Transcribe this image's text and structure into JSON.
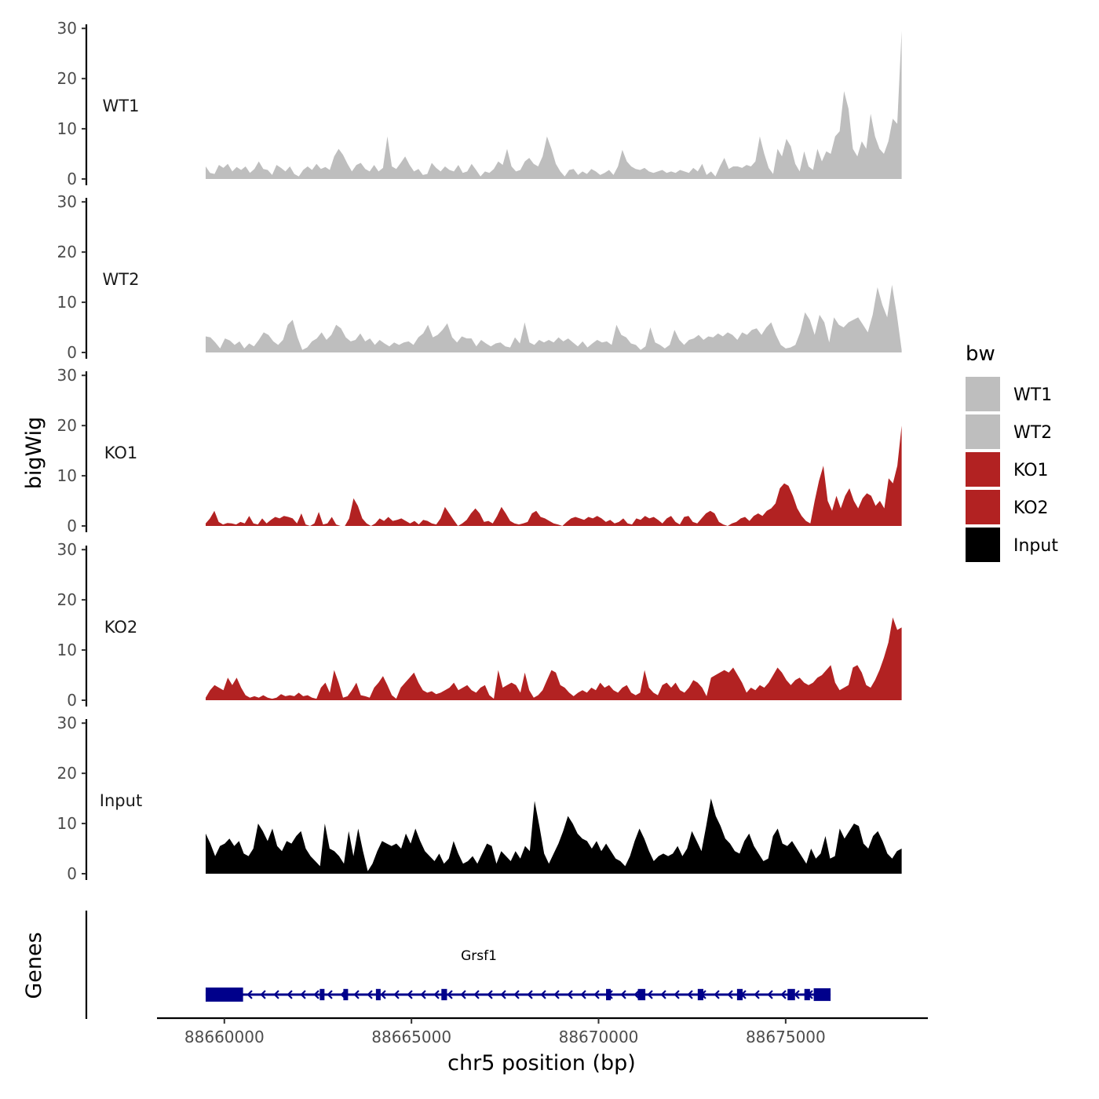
{
  "chart_data": {
    "type": "area",
    "y_axis_title": "bigWig",
    "x_axis_title": "chr5 position (bp)",
    "genes_axis_title": "Genes",
    "x_ticks": [
      88660000,
      88665000,
      88670000,
      88675000
    ],
    "x_tick_labels": [
      "88660000",
      "88665000",
      "88670000",
      "88675000"
    ],
    "xlim": [
      88658200,
      88678800
    ],
    "y_ticks": [
      0,
      10,
      20,
      30
    ],
    "y_tick_labels": [
      "0",
      "10",
      "20",
      "30"
    ],
    "ylim": [
      0,
      30.5
    ],
    "data_range": [
      88659500,
      88678100
    ],
    "legend": {
      "title": "bw",
      "entries": [
        {
          "label": "WT1",
          "color": "#BEBEBE"
        },
        {
          "label": "WT2",
          "color": "#BEBEBE"
        },
        {
          "label": "KO1",
          "color": "#B22222"
        },
        {
          "label": "KO2",
          "color": "#B22222"
        },
        {
          "label": "Input",
          "color": "#000000"
        }
      ]
    },
    "series": [
      {
        "name": "WT1",
        "color": "#BEBEBE",
        "values": [
          2.5,
          1.2,
          1.0,
          2.8,
          2.2,
          3.0,
          1.5,
          2.4,
          1.8,
          2.5,
          1.2,
          2.0,
          3.5,
          2.0,
          1.8,
          0.8,
          2.8,
          2.2,
          1.5,
          2.5,
          1.0,
          0.5,
          1.8,
          2.5,
          1.8,
          3.0,
          2.0,
          2.4,
          1.8,
          4.5,
          6.0,
          4.8,
          3.0,
          1.5,
          2.8,
          3.2,
          2.0,
          1.5,
          2.8,
          1.5,
          2.2,
          8.5,
          2.5,
          2.0,
          3.2,
          4.5,
          2.8,
          1.5,
          2.0,
          0.8,
          1.0,
          3.2,
          2.2,
          1.5,
          2.5,
          1.8,
          1.5,
          2.8,
          1.2,
          1.5,
          3.0,
          1.8,
          0.5,
          1.5,
          1.2,
          2.0,
          3.5,
          2.8,
          6.0,
          2.5,
          1.5,
          1.8,
          3.5,
          4.2,
          3.0,
          2.5,
          4.5,
          8.5,
          6.0,
          3.0,
          1.5,
          0.5,
          1.8,
          2.0,
          0.8,
          1.5,
          1.0,
          2.0,
          1.5,
          0.8,
          1.2,
          1.8,
          0.8,
          2.5,
          5.8,
          3.5,
          2.5,
          2.0,
          1.8,
          2.2,
          1.5,
          1.2,
          1.5,
          1.8,
          1.2,
          1.5,
          1.2,
          1.8,
          1.5,
          1.2,
          2.2,
          1.5,
          3.0,
          0.8,
          1.5,
          0.5,
          2.5,
          4.2,
          2.0,
          2.5,
          2.5,
          2.2,
          2.8,
          2.5,
          3.5,
          8.5,
          5.0,
          2.2,
          1.0,
          6.0,
          4.5,
          8.0,
          6.5,
          3.0,
          1.5,
          5.5,
          2.5,
          1.8,
          6.0,
          3.5,
          5.5,
          5.0,
          8.5,
          9.5,
          17.5,
          14.0,
          6.0,
          4.5,
          7.5,
          6.0,
          13.0,
          8.5,
          6.0,
          5.0,
          7.5,
          12.0,
          11.0,
          29.5
        ]
      },
      {
        "name": "WT2",
        "color": "#BEBEBE",
        "values": [
          3.2,
          3.0,
          2.0,
          0.8,
          2.8,
          2.4,
          1.5,
          2.2,
          0.8,
          1.8,
          1.2,
          2.5,
          4.0,
          3.5,
          2.2,
          1.5,
          2.5,
          5.5,
          6.5,
          3.0,
          0.5,
          1.0,
          2.2,
          2.8,
          4.0,
          2.5,
          3.5,
          5.5,
          4.8,
          3.0,
          2.2,
          2.5,
          3.8,
          2.2,
          2.8,
          1.5,
          2.5,
          1.8,
          1.2,
          2.0,
          1.5,
          2.0,
          2.2,
          1.5,
          3.0,
          3.8,
          5.5,
          3.0,
          3.5,
          4.5,
          5.8,
          3.0,
          2.0,
          3.2,
          2.8,
          2.8,
          1.2,
          2.5,
          1.8,
          1.2,
          1.8,
          2.0,
          1.2,
          1.0,
          3.0,
          1.8,
          6.0,
          2.0,
          1.5,
          2.5,
          2.0,
          2.5,
          2.0,
          3.0,
          2.2,
          2.8,
          2.0,
          1.2,
          2.2,
          1.0,
          1.8,
          2.5,
          2.0,
          2.2,
          1.5,
          5.5,
          3.5,
          3.0,
          1.8,
          1.5,
          0.5,
          1.2,
          5.0,
          2.0,
          1.5,
          0.8,
          1.5,
          4.5,
          2.5,
          1.5,
          2.5,
          2.8,
          3.5,
          2.5,
          3.2,
          3.0,
          3.8,
          3.2,
          4.0,
          3.5,
          2.5,
          4.0,
          3.5,
          4.5,
          4.8,
          3.5,
          5.0,
          6.0,
          3.5,
          1.5,
          0.8,
          1.0,
          1.5,
          4.0,
          8.0,
          6.5,
          3.5,
          7.5,
          6.0,
          2.0,
          7.0,
          5.5,
          5.0,
          6.0,
          6.5,
          7.0,
          5.5,
          4.0,
          7.5,
          13.0,
          9.5,
          7.0,
          13.5,
          7.5,
          0.5
        ]
      },
      {
        "name": "KO1",
        "color": "#B22222",
        "values": [
          0.5,
          1.5,
          3.0,
          0.8,
          0.3,
          0.6,
          0.5,
          0.3,
          0.8,
          0.5,
          2.0,
          0.5,
          0.3,
          1.5,
          0.5,
          1.2,
          1.8,
          1.5,
          2.0,
          1.8,
          1.5,
          0.5,
          2.5,
          0.3,
          0,
          0.5,
          2.8,
          0.3,
          0.5,
          1.8,
          0.3,
          0,
          0,
          1.5,
          5.5,
          4.0,
          1.5,
          0.5,
          0,
          0.5,
          1.5,
          1.0,
          1.8,
          1.0,
          1.2,
          1.5,
          1.0,
          0.5,
          1.0,
          0.3,
          1.2,
          1.0,
          0.5,
          0.3,
          1.5,
          3.8,
          2.5,
          1.2,
          0,
          0.5,
          1.2,
          2.5,
          3.5,
          2.5,
          0.8,
          1.0,
          0.5,
          2.0,
          3.8,
          2.5,
          1.0,
          0.5,
          0.3,
          0.5,
          0.8,
          2.5,
          3.0,
          1.8,
          1.5,
          1.0,
          0.5,
          0.3,
          0,
          0.8,
          1.5,
          1.8,
          1.5,
          1.2,
          1.8,
          1.5,
          2.0,
          1.5,
          0.8,
          1.2,
          0.5,
          0.8,
          1.5,
          0.5,
          0.3,
          1.5,
          1.2,
          2.0,
          1.5,
          1.8,
          1.2,
          0.5,
          1.5,
          2.0,
          0.8,
          0.3,
          1.8,
          2.0,
          0.8,
          0.5,
          1.5,
          2.5,
          3.0,
          2.5,
          0.8,
          0.3,
          0,
          0.5,
          0.8,
          1.5,
          1.8,
          1.0,
          2.0,
          2.5,
          2.0,
          3.0,
          3.5,
          4.5,
          7.5,
          8.5,
          8.0,
          6.0,
          3.5,
          2.0,
          1.0,
          0.5,
          5.0,
          9.0,
          12.0,
          5.0,
          3.0,
          6.0,
          3.5,
          6.0,
          7.5,
          5.0,
          3.5,
          5.5,
          6.5,
          6.0,
          4.0,
          5.0,
          3.5,
          9.5,
          8.5,
          12.0,
          20.0
        ]
      },
      {
        "name": "KO2",
        "color": "#B22222",
        "values": [
          0.5,
          2.0,
          3.0,
          2.5,
          2.0,
          4.5,
          3.0,
          4.5,
          2.5,
          1.0,
          0.5,
          0.8,
          0.5,
          1.0,
          0.5,
          0.3,
          0.5,
          1.2,
          0.8,
          1.0,
          0.8,
          1.5,
          0.8,
          1.0,
          0.5,
          0.3,
          2.5,
          3.5,
          1.5,
          6.0,
          3.5,
          0.5,
          0.8,
          2.0,
          3.5,
          1.0,
          0.8,
          0.5,
          2.5,
          3.5,
          4.8,
          3.0,
          1.0,
          0.3,
          2.5,
          3.5,
          4.5,
          5.5,
          3.5,
          2.0,
          1.5,
          1.8,
          1.2,
          1.5,
          2.0,
          2.5,
          3.5,
          2.0,
          2.5,
          3.0,
          2.0,
          1.5,
          2.5,
          3.0,
          1.0,
          0.3,
          6.0,
          2.5,
          3.0,
          3.5,
          3.0,
          1.5,
          5.5,
          2.0,
          0.5,
          1.0,
          2.0,
          4.0,
          6.0,
          5.5,
          3.0,
          2.5,
          1.5,
          0.8,
          1.5,
          2.0,
          1.5,
          2.5,
          2.0,
          3.5,
          2.5,
          3.0,
          2.0,
          1.5,
          2.5,
          3.0,
          1.5,
          1.0,
          1.5,
          6.0,
          2.5,
          1.5,
          1.0,
          3.0,
          3.5,
          2.5,
          3.5,
          2.0,
          1.5,
          2.5,
          4.0,
          3.5,
          2.5,
          0.8,
          4.5,
          5.0,
          5.5,
          6.0,
          5.5,
          6.5,
          5.0,
          3.5,
          1.5,
          2.5,
          2.0,
          3.0,
          2.5,
          3.5,
          5.0,
          6.5,
          5.5,
          4.0,
          3.0,
          4.0,
          4.5,
          3.5,
          3.0,
          3.5,
          4.5,
          5.0,
          6.0,
          7.0,
          3.5,
          2.0,
          2.5,
          3.0,
          6.5,
          7.0,
          5.5,
          3.0,
          2.5,
          4.0,
          6.0,
          8.5,
          11.5,
          16.5,
          14.0,
          14.5
        ]
      },
      {
        "name": "Input",
        "color": "#000000",
        "values": [
          8.0,
          6.0,
          3.5,
          5.5,
          6.0,
          7.0,
          5.5,
          6.5,
          4.0,
          3.5,
          5.0,
          10.0,
          8.5,
          6.5,
          9.0,
          5.5,
          4.5,
          6.5,
          6.0,
          7.5,
          8.5,
          5.0,
          3.5,
          2.5,
          1.5,
          10.0,
          5.0,
          4.5,
          3.5,
          2.0,
          8.5,
          3.5,
          9.0,
          4.5,
          0.5,
          2.0,
          4.5,
          6.5,
          6.0,
          5.5,
          6.0,
          5.0,
          8.0,
          6.0,
          9.0,
          6.5,
          4.5,
          3.5,
          2.5,
          4.0,
          2.0,
          3.0,
          6.5,
          4.0,
          2.0,
          2.5,
          3.5,
          2.0,
          4.0,
          6.0,
          5.5,
          2.0,
          4.5,
          3.5,
          2.5,
          4.5,
          3.0,
          5.5,
          4.5,
          14.5,
          9.5,
          4.0,
          2.0,
          4.0,
          6.0,
          8.5,
          11.5,
          10.0,
          8.0,
          7.0,
          6.5,
          5.0,
          6.5,
          4.5,
          6.0,
          4.5,
          3.0,
          2.5,
          1.5,
          3.5,
          6.5,
          9.0,
          7.0,
          4.5,
          2.5,
          3.5,
          4.0,
          3.5,
          4.0,
          5.5,
          3.5,
          5.0,
          8.5,
          6.5,
          4.5,
          9.5,
          15.0,
          11.5,
          9.5,
          7.0,
          6.0,
          4.5,
          4.0,
          6.5,
          8.0,
          5.5,
          4.0,
          2.5,
          3.0,
          7.5,
          9.0,
          6.0,
          5.5,
          6.5,
          5.0,
          3.5,
          2.0,
          5.0,
          3.0,
          4.0,
          7.5,
          3.0,
          3.5,
          9.0,
          7.0,
          8.5,
          10.0,
          9.5,
          6.0,
          5.0,
          7.5,
          8.5,
          6.5,
          4.0,
          3.0,
          4.5,
          5.0
        ]
      }
    ],
    "genes": [
      {
        "name": "Grsf1",
        "strand": "-",
        "start": 88659500,
        "end": 88676200,
        "exons": [
          {
            "start": 88659500,
            "end": 88660500,
            "thick": 1
          },
          {
            "start": 88662550,
            "end": 88662650,
            "thick": 0.8
          },
          {
            "start": 88663180,
            "end": 88663300,
            "thick": 0.8
          },
          {
            "start": 88664050,
            "end": 88664150,
            "thick": 0.8
          },
          {
            "start": 88665800,
            "end": 88665950,
            "thick": 0.8
          },
          {
            "start": 88670200,
            "end": 88670300,
            "thick": 0.8
          },
          {
            "start": 88671050,
            "end": 88671250,
            "thick": 0.8
          },
          {
            "start": 88672650,
            "end": 88672800,
            "thick": 0.8
          },
          {
            "start": 88673700,
            "end": 88673850,
            "thick": 0.8
          },
          {
            "start": 88675050,
            "end": 88675250,
            "thick": 0.8
          },
          {
            "start": 88675500,
            "end": 88675650,
            "thick": 0.8
          },
          {
            "start": 88675750,
            "end": 88676200,
            "thick": 0.9
          }
        ],
        "color": "#00008B"
      }
    ]
  }
}
